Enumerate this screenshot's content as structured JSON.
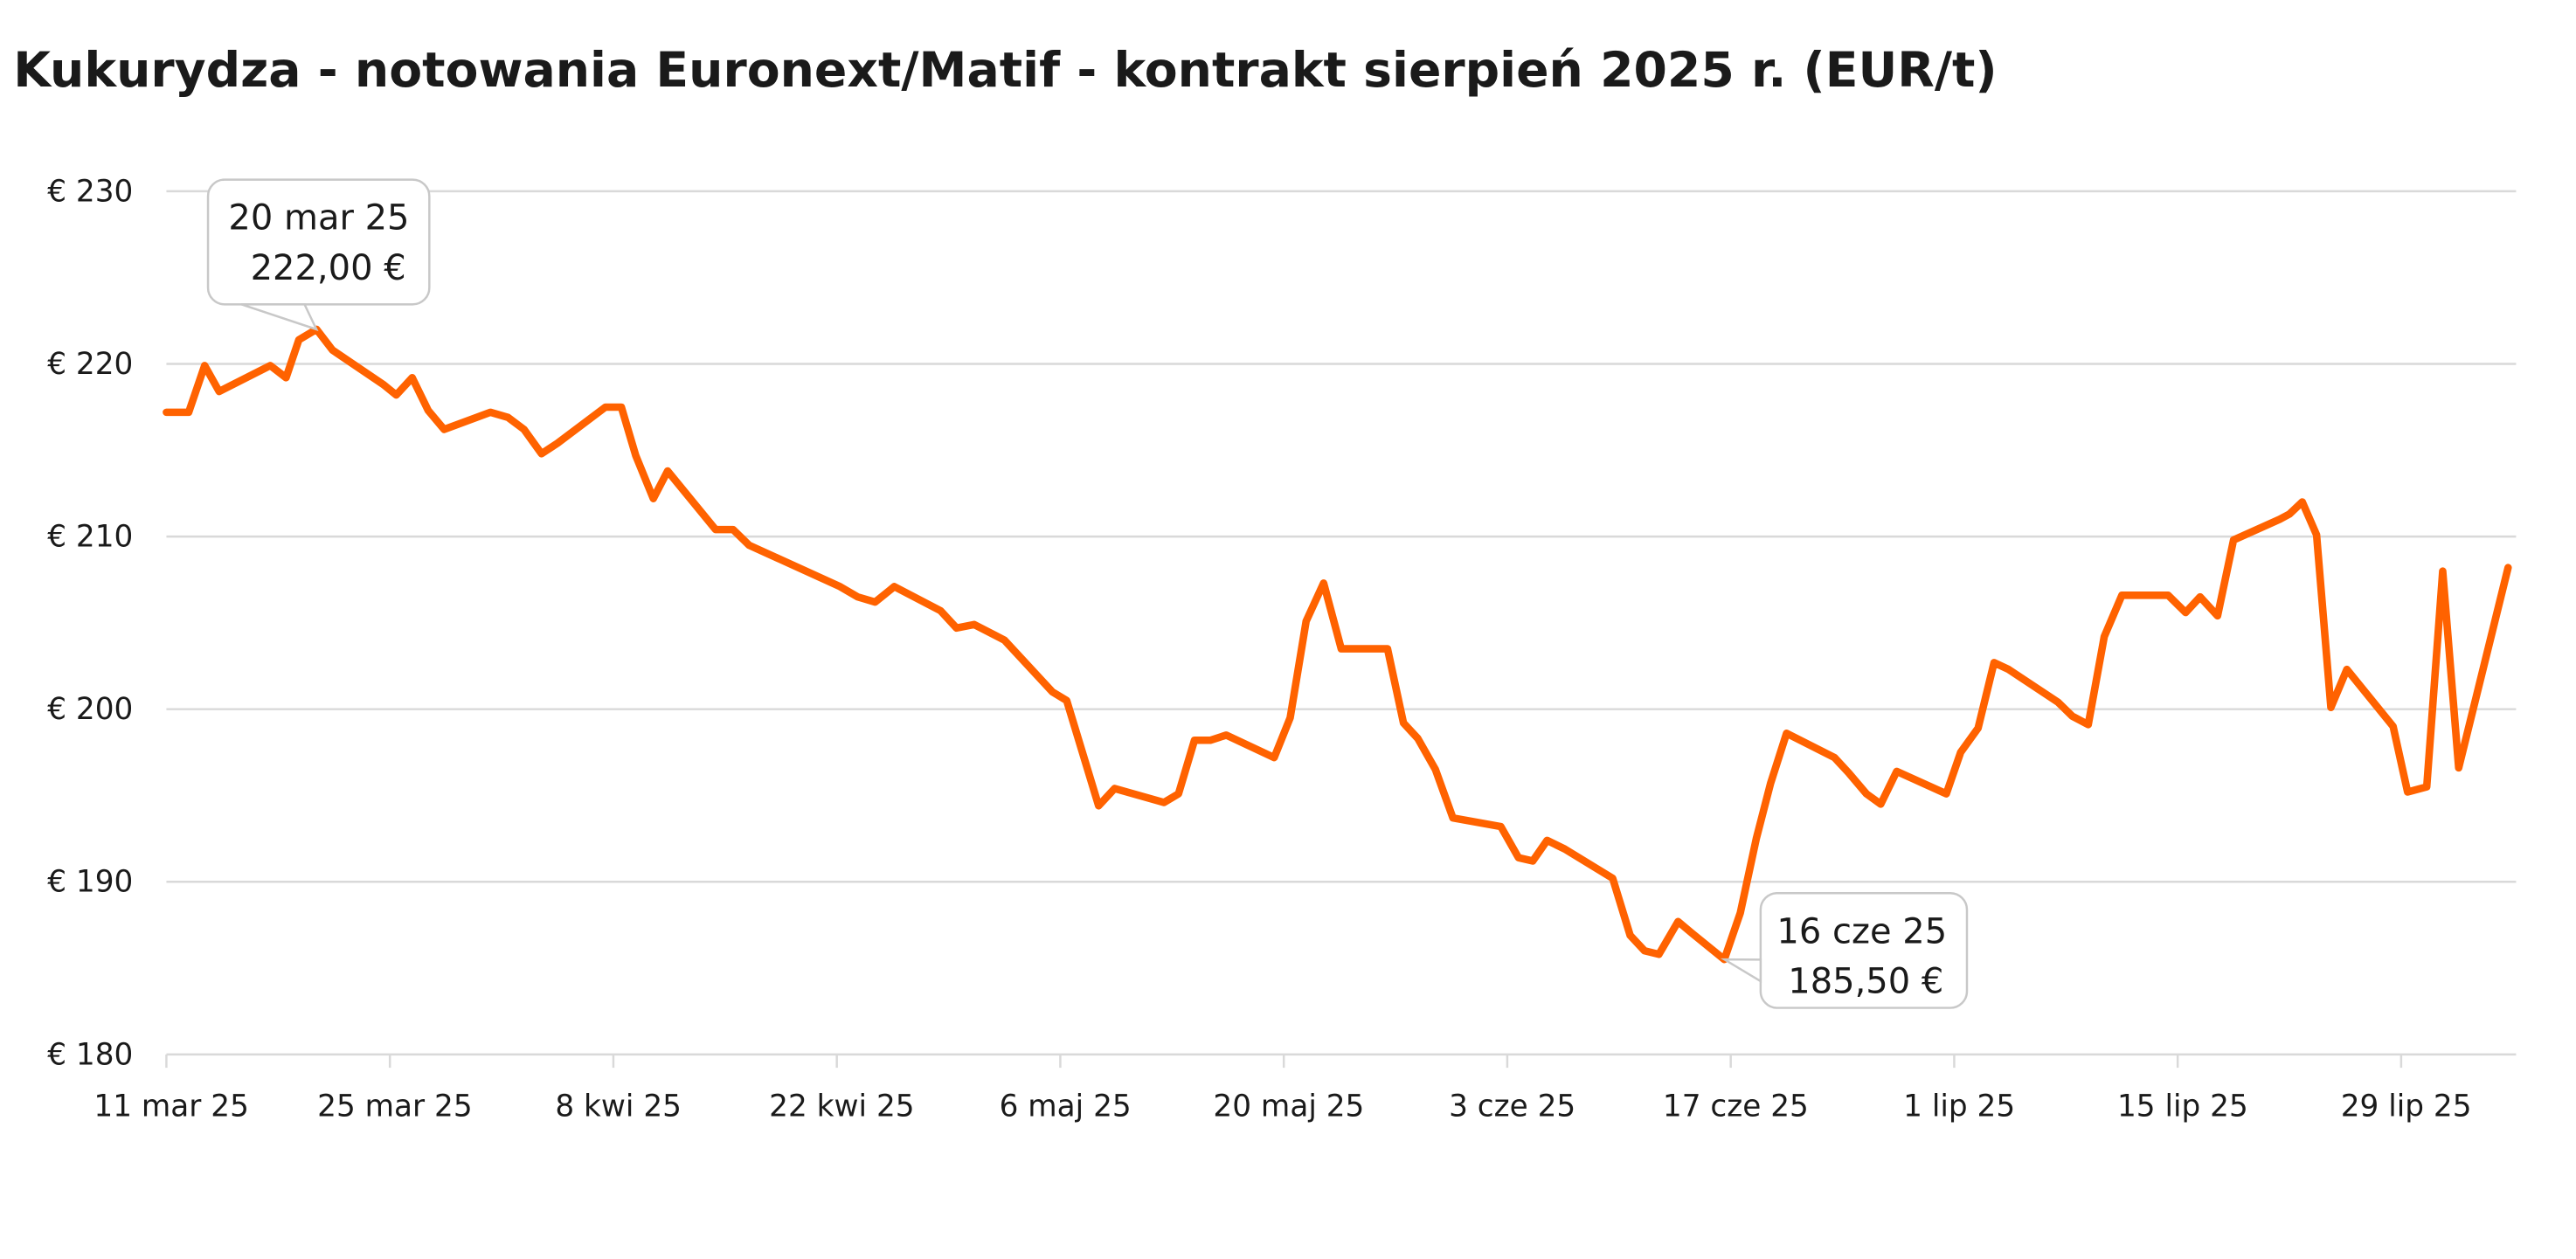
{
  "chart_data": {
    "type": "line",
    "title": "Kukurydza - notowania Euronext/Matif - kontrakt sierpień 2025 r. (EUR/t)",
    "xlabel": "",
    "ylabel": "",
    "x_unit": "days since 11 mar 25",
    "xlim": [
      0,
      147.2
    ],
    "ylim": [
      180,
      230
    ],
    "grid": true,
    "legend": "none",
    "line_color": "#ff6200",
    "yticks": [
      230,
      220,
      210,
      200,
      190,
      180
    ],
    "ytick_labels": [
      "€ 230",
      "€ 220",
      "€ 210",
      "€ 200",
      "€ 190",
      "€ 180"
    ],
    "xticks": [
      0,
      14,
      28,
      42,
      56,
      70,
      84,
      98,
      112,
      126,
      140
    ],
    "xtick_labels": [
      "11 mar 25",
      "25 mar 25",
      "8 kwi 25",
      "22 kwi 25",
      "6 maj 25",
      "20 maj 25",
      "3 cze 25",
      "17 cze 25",
      "1 lip 25",
      "15 lip 25",
      "29 lip 25"
    ],
    "series": [
      {
        "name": "Kukurydza",
        "x": [
          0,
          1.4,
          2.4,
          3.3,
          6.5,
          7.5,
          8.3,
          9.4,
          10.4,
          13.6,
          14.4,
          15.4,
          16.4,
          17.4,
          20.3,
          21.4,
          22.4,
          23.5,
          24.5,
          27.5,
          28.5,
          29.4,
          30.5,
          31.4,
          34.4,
          35.5,
          36.5,
          42.2,
          43.3,
          44.4,
          45.6,
          48.5,
          49.5,
          50.6,
          52.5,
          55.5,
          56.4,
          58.4,
          59.4,
          62.5,
          63.4,
          64.4,
          65.4,
          66.4,
          69.4,
          70.4,
          71.4,
          72.5,
          73.6,
          76.5,
          77.5,
          78.4,
          79.5,
          80.6,
          83.6,
          84.7,
          85.6,
          86.5,
          87.6,
          90.6,
          91.7,
          92.6,
          93.5,
          94.7,
          95.6,
          97.6,
          98.6,
          99.6,
          100.5,
          101.5,
          104.5,
          105.4,
          106.5,
          107.4,
          108.4,
          111.5,
          112.4,
          113.5,
          114.5,
          115.4,
          118.5,
          119.4,
          120.4,
          121.4,
          122.5,
          125.4,
          126.5,
          127.4,
          128.5,
          129.5,
          132.4,
          133.0,
          133.8,
          134.7,
          135.6,
          136.6,
          139.5,
          140.4,
          141.6,
          142.6,
          143.6,
          146.7
        ],
        "values": [
          217.2,
          217.2,
          219.9,
          218.4,
          219.9,
          219.2,
          221.4,
          222.0,
          220.8,
          218.8,
          218.2,
          219.2,
          217.3,
          216.2,
          217.2,
          216.9,
          216.2,
          214.8,
          215.4,
          217.5,
          217.5,
          214.7,
          212.2,
          213.8,
          210.4,
          210.4,
          209.5,
          207.1,
          206.5,
          206.2,
          207.1,
          205.7,
          204.7,
          204.9,
          204.0,
          201.0,
          200.5,
          194.4,
          195.4,
          194.6,
          195.1,
          198.2,
          198.2,
          198.5,
          197.2,
          199.5,
          205.1,
          207.3,
          203.5,
          203.5,
          199.2,
          198.3,
          196.5,
          193.7,
          193.2,
          191.4,
          191.2,
          192.4,
          191.9,
          190.2,
          186.9,
          186.0,
          185.8,
          187.7,
          187.0,
          185.5,
          188.2,
          192.5,
          195.7,
          198.6,
          197.2,
          196.3,
          195.1,
          194.5,
          196.4,
          195.1,
          197.5,
          198.9,
          202.7,
          202.3,
          200.4,
          199.6,
          199.1,
          204.2,
          206.6,
          206.6,
          205.6,
          206.5,
          205.4,
          209.8,
          211.0,
          211.3,
          212.0,
          210.1,
          200.1,
          202.3,
          199.0,
          195.2,
          195.5,
          208.0,
          196.6,
          208.2
        ]
      }
    ],
    "annotations": [
      {
        "x": 9.4,
        "y": 222.0,
        "line1": "20 mar 25",
        "line2": "222,00 €"
      },
      {
        "x": 97.6,
        "y": 185.5,
        "line1": "16 cze 25",
        "line2": "185,50 €"
      }
    ]
  }
}
